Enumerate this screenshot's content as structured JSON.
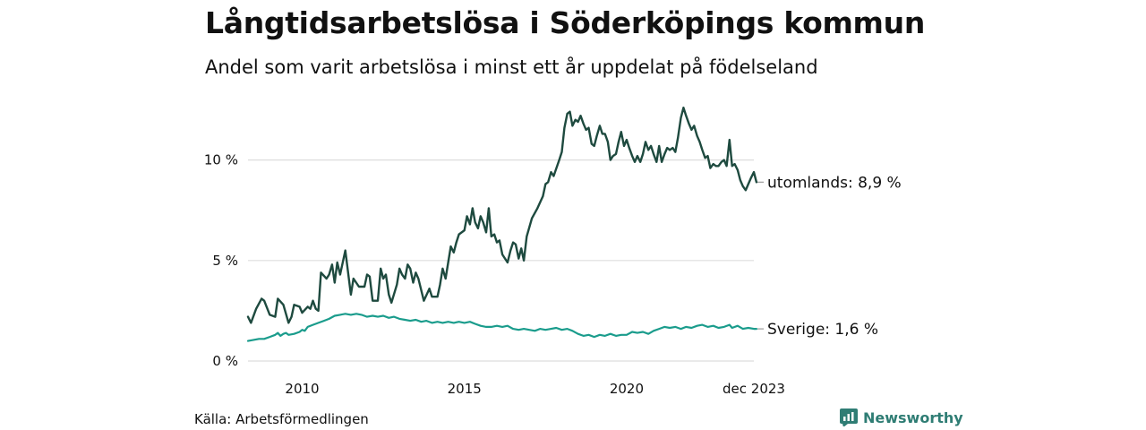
{
  "header": {
    "title": "Långtidsarbetslösa i Söderköpings kommun",
    "subtitle": "Andel som varit arbetslösa i minst ett år uppdelat på födelseland"
  },
  "footer": {
    "source": "Källa: Arbetsförmedlingen",
    "brand": "Newsworthy"
  },
  "colors": {
    "utomlands": "#1e4a3f",
    "sverige": "#1a9c8c",
    "grid": "#dddddd",
    "brand": "#2f7d74"
  },
  "chart_data": {
    "type": "line",
    "title": "Långtidsarbetslösa i Söderköpings kommun",
    "subtitle": "Andel som varit arbetslösa i minst ett år uppdelat på födelseland",
    "xlabel": "",
    "ylabel": "",
    "xlim": [
      2008.33,
      2023.92
    ],
    "ylim": [
      0,
      12.7
    ],
    "y_ticks": [
      {
        "value": 0,
        "label": "0 %"
      },
      {
        "value": 5,
        "label": "5 %"
      },
      {
        "value": 10,
        "label": "10 %"
      }
    ],
    "x_ticks": [
      {
        "value": 2010,
        "label": "2010"
      },
      {
        "value": 2015,
        "label": "2015"
      },
      {
        "value": 2020,
        "label": "2020"
      },
      {
        "value": 2023.92,
        "label": "dec 2023"
      }
    ],
    "grid": true,
    "series": [
      {
        "name": "utomlands",
        "end_label": "utomlands: 8,9 %",
        "points": [
          [
            2008.33,
            2.2
          ],
          [
            2008.42,
            1.9
          ],
          [
            2008.58,
            2.6
          ],
          [
            2008.75,
            3.1
          ],
          [
            2008.83,
            3.0
          ],
          [
            2009.0,
            2.3
          ],
          [
            2009.17,
            2.2
          ],
          [
            2009.25,
            3.1
          ],
          [
            2009.42,
            2.8
          ],
          [
            2009.58,
            1.9
          ],
          [
            2009.67,
            2.2
          ],
          [
            2009.75,
            2.8
          ],
          [
            2009.92,
            2.7
          ],
          [
            2010.0,
            2.4
          ],
          [
            2010.17,
            2.7
          ],
          [
            2010.25,
            2.6
          ],
          [
            2010.33,
            3.0
          ],
          [
            2010.42,
            2.6
          ],
          [
            2010.5,
            2.5
          ],
          [
            2010.58,
            4.4
          ],
          [
            2010.75,
            4.1
          ],
          [
            2010.83,
            4.3
          ],
          [
            2010.92,
            4.8
          ],
          [
            2011.0,
            3.9
          ],
          [
            2011.08,
            4.9
          ],
          [
            2011.17,
            4.3
          ],
          [
            2011.33,
            5.5
          ],
          [
            2011.5,
            3.3
          ],
          [
            2011.58,
            4.1
          ],
          [
            2011.75,
            3.7
          ],
          [
            2011.92,
            3.7
          ],
          [
            2012.0,
            4.3
          ],
          [
            2012.08,
            4.2
          ],
          [
            2012.17,
            3.0
          ],
          [
            2012.33,
            3.0
          ],
          [
            2012.42,
            4.6
          ],
          [
            2012.5,
            4.1
          ],
          [
            2012.58,
            4.3
          ],
          [
            2012.67,
            3.3
          ],
          [
            2012.75,
            2.9
          ],
          [
            2012.92,
            3.8
          ],
          [
            2013.0,
            4.6
          ],
          [
            2013.08,
            4.3
          ],
          [
            2013.17,
            4.1
          ],
          [
            2013.25,
            4.8
          ],
          [
            2013.33,
            4.6
          ],
          [
            2013.42,
            3.9
          ],
          [
            2013.5,
            4.4
          ],
          [
            2013.58,
            4.1
          ],
          [
            2013.75,
            3.0
          ],
          [
            2013.92,
            3.6
          ],
          [
            2014.0,
            3.2
          ],
          [
            2014.17,
            3.2
          ],
          [
            2014.25,
            3.8
          ],
          [
            2014.33,
            4.6
          ],
          [
            2014.42,
            4.1
          ],
          [
            2014.5,
            4.9
          ],
          [
            2014.58,
            5.7
          ],
          [
            2014.67,
            5.4
          ],
          [
            2014.75,
            5.9
          ],
          [
            2014.83,
            6.3
          ],
          [
            2015.0,
            6.5
          ],
          [
            2015.08,
            7.2
          ],
          [
            2015.17,
            6.8
          ],
          [
            2015.25,
            7.6
          ],
          [
            2015.33,
            6.9
          ],
          [
            2015.42,
            6.6
          ],
          [
            2015.5,
            7.2
          ],
          [
            2015.58,
            6.9
          ],
          [
            2015.67,
            6.4
          ],
          [
            2015.75,
            7.6
          ],
          [
            2015.83,
            6.2
          ],
          [
            2015.92,
            6.3
          ],
          [
            2016.0,
            5.9
          ],
          [
            2016.08,
            6.0
          ],
          [
            2016.17,
            5.3
          ],
          [
            2016.33,
            4.9
          ],
          [
            2016.42,
            5.5
          ],
          [
            2016.5,
            5.9
          ],
          [
            2016.58,
            5.8
          ],
          [
            2016.67,
            5.1
          ],
          [
            2016.75,
            5.6
          ],
          [
            2016.83,
            5.0
          ],
          [
            2016.92,
            6.2
          ],
          [
            2017.08,
            7.1
          ],
          [
            2017.25,
            7.6
          ],
          [
            2017.42,
            8.2
          ],
          [
            2017.5,
            8.8
          ],
          [
            2017.58,
            8.9
          ],
          [
            2017.67,
            9.4
          ],
          [
            2017.75,
            9.2
          ],
          [
            2017.92,
            10.0
          ],
          [
            2018.0,
            10.4
          ],
          [
            2018.08,
            11.6
          ],
          [
            2018.17,
            12.3
          ],
          [
            2018.25,
            12.4
          ],
          [
            2018.33,
            11.7
          ],
          [
            2018.42,
            12.0
          ],
          [
            2018.5,
            11.9
          ],
          [
            2018.58,
            12.2
          ],
          [
            2018.67,
            11.8
          ],
          [
            2018.75,
            11.5
          ],
          [
            2018.83,
            11.6
          ],
          [
            2018.92,
            10.8
          ],
          [
            2019.0,
            10.7
          ],
          [
            2019.08,
            11.2
          ],
          [
            2019.17,
            11.7
          ],
          [
            2019.25,
            11.3
          ],
          [
            2019.33,
            11.3
          ],
          [
            2019.42,
            10.9
          ],
          [
            2019.5,
            10.0
          ],
          [
            2019.58,
            10.2
          ],
          [
            2019.67,
            10.3
          ],
          [
            2019.75,
            10.9
          ],
          [
            2019.83,
            11.4
          ],
          [
            2019.92,
            10.7
          ],
          [
            2020.0,
            11.0
          ],
          [
            2020.08,
            10.6
          ],
          [
            2020.17,
            10.2
          ],
          [
            2020.25,
            9.9
          ],
          [
            2020.33,
            10.2
          ],
          [
            2020.42,
            9.9
          ],
          [
            2020.5,
            10.3
          ],
          [
            2020.58,
            10.9
          ],
          [
            2020.67,
            10.5
          ],
          [
            2020.75,
            10.7
          ],
          [
            2020.83,
            10.3
          ],
          [
            2020.92,
            9.9
          ],
          [
            2021.0,
            10.7
          ],
          [
            2021.08,
            9.9
          ],
          [
            2021.17,
            10.3
          ],
          [
            2021.25,
            10.6
          ],
          [
            2021.33,
            10.5
          ],
          [
            2021.42,
            10.6
          ],
          [
            2021.5,
            10.4
          ],
          [
            2021.58,
            11.1
          ],
          [
            2021.67,
            12.1
          ],
          [
            2021.75,
            12.6
          ],
          [
            2021.83,
            12.2
          ],
          [
            2021.92,
            11.8
          ],
          [
            2022.0,
            11.5
          ],
          [
            2022.08,
            11.7
          ],
          [
            2022.17,
            11.2
          ],
          [
            2022.25,
            10.9
          ],
          [
            2022.33,
            10.5
          ],
          [
            2022.42,
            10.1
          ],
          [
            2022.5,
            10.2
          ],
          [
            2022.58,
            9.6
          ],
          [
            2022.67,
            9.8
          ],
          [
            2022.75,
            9.7
          ],
          [
            2022.83,
            9.7
          ],
          [
            2022.92,
            9.9
          ],
          [
            2023.0,
            10.0
          ],
          [
            2023.08,
            9.7
          ],
          [
            2023.17,
            11.0
          ],
          [
            2023.25,
            9.7
          ],
          [
            2023.33,
            9.8
          ],
          [
            2023.42,
            9.5
          ],
          [
            2023.5,
            9.0
          ],
          [
            2023.58,
            8.7
          ],
          [
            2023.67,
            8.5
          ],
          [
            2023.75,
            8.8
          ],
          [
            2023.83,
            9.1
          ],
          [
            2023.92,
            9.4
          ],
          [
            2024.0,
            8.9
          ]
        ]
      },
      {
        "name": "Sverige",
        "end_label": "Sverige: 1,6 %",
        "points": [
          [
            2008.33,
            1.0
          ],
          [
            2008.5,
            1.05
          ],
          [
            2008.67,
            1.1
          ],
          [
            2008.83,
            1.1
          ],
          [
            2009.0,
            1.2
          ],
          [
            2009.17,
            1.3
          ],
          [
            2009.25,
            1.4
          ],
          [
            2009.33,
            1.25
          ],
          [
            2009.42,
            1.35
          ],
          [
            2009.5,
            1.4
          ],
          [
            2009.58,
            1.3
          ],
          [
            2009.75,
            1.35
          ],
          [
            2009.92,
            1.45
          ],
          [
            2010.0,
            1.55
          ],
          [
            2010.08,
            1.5
          ],
          [
            2010.17,
            1.7
          ],
          [
            2010.33,
            1.8
          ],
          [
            2010.5,
            1.9
          ],
          [
            2010.67,
            2.0
          ],
          [
            2010.83,
            2.1
          ],
          [
            2011.0,
            2.25
          ],
          [
            2011.17,
            2.3
          ],
          [
            2011.33,
            2.35
          ],
          [
            2011.5,
            2.3
          ],
          [
            2011.67,
            2.35
          ],
          [
            2011.83,
            2.3
          ],
          [
            2012.0,
            2.2
          ],
          [
            2012.17,
            2.25
          ],
          [
            2012.33,
            2.2
          ],
          [
            2012.5,
            2.25
          ],
          [
            2012.67,
            2.15
          ],
          [
            2012.83,
            2.2
          ],
          [
            2013.0,
            2.1
          ],
          [
            2013.17,
            2.05
          ],
          [
            2013.33,
            2.0
          ],
          [
            2013.5,
            2.05
          ],
          [
            2013.67,
            1.95
          ],
          [
            2013.83,
            2.0
          ],
          [
            2014.0,
            1.9
          ],
          [
            2014.17,
            1.95
          ],
          [
            2014.33,
            1.9
          ],
          [
            2014.5,
            1.95
          ],
          [
            2014.67,
            1.9
          ],
          [
            2014.83,
            1.95
          ],
          [
            2015.0,
            1.9
          ],
          [
            2015.17,
            1.95
          ],
          [
            2015.33,
            1.85
          ],
          [
            2015.5,
            1.75
          ],
          [
            2015.67,
            1.7
          ],
          [
            2015.83,
            1.7
          ],
          [
            2016.0,
            1.75
          ],
          [
            2016.17,
            1.7
          ],
          [
            2016.33,
            1.75
          ],
          [
            2016.5,
            1.6
          ],
          [
            2016.67,
            1.55
          ],
          [
            2016.83,
            1.6
          ],
          [
            2017.0,
            1.55
          ],
          [
            2017.17,
            1.5
          ],
          [
            2017.33,
            1.6
          ],
          [
            2017.5,
            1.55
          ],
          [
            2017.67,
            1.6
          ],
          [
            2017.83,
            1.65
          ],
          [
            2018.0,
            1.55
          ],
          [
            2018.17,
            1.6
          ],
          [
            2018.33,
            1.5
          ],
          [
            2018.5,
            1.35
          ],
          [
            2018.67,
            1.25
          ],
          [
            2018.83,
            1.3
          ],
          [
            2019.0,
            1.2
          ],
          [
            2019.17,
            1.3
          ],
          [
            2019.33,
            1.25
          ],
          [
            2019.5,
            1.35
          ],
          [
            2019.67,
            1.25
          ],
          [
            2019.83,
            1.3
          ],
          [
            2020.0,
            1.3
          ],
          [
            2020.17,
            1.45
          ],
          [
            2020.33,
            1.4
          ],
          [
            2020.5,
            1.45
          ],
          [
            2020.67,
            1.35
          ],
          [
            2020.83,
            1.5
          ],
          [
            2021.0,
            1.6
          ],
          [
            2021.17,
            1.7
          ],
          [
            2021.33,
            1.65
          ],
          [
            2021.5,
            1.7
          ],
          [
            2021.67,
            1.6
          ],
          [
            2021.83,
            1.7
          ],
          [
            2022.0,
            1.65
          ],
          [
            2022.17,
            1.75
          ],
          [
            2022.33,
            1.8
          ],
          [
            2022.5,
            1.7
          ],
          [
            2022.67,
            1.75
          ],
          [
            2022.83,
            1.65
          ],
          [
            2023.0,
            1.7
          ],
          [
            2023.17,
            1.8
          ],
          [
            2023.25,
            1.65
          ],
          [
            2023.42,
            1.75
          ],
          [
            2023.58,
            1.6
          ],
          [
            2023.75,
            1.65
          ],
          [
            2023.92,
            1.6
          ],
          [
            2024.0,
            1.6
          ]
        ]
      }
    ]
  }
}
